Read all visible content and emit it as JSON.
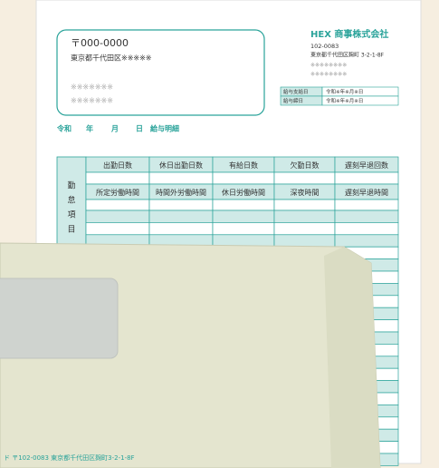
{
  "recipient": {
    "postal": "〒000-0000",
    "address": "東京都千代田区※※※※※",
    "lines": [
      "※※※※※※※",
      "※※※※※※※"
    ]
  },
  "company": {
    "name": "HEX 商事株式会社",
    "postal": "102-0083",
    "address": "東京都千代田区麹町 3-2-1-8F",
    "lines": [
      "※※※※※※※※",
      "※※※※※※※※"
    ]
  },
  "dates": {
    "rows": [
      [
        "給与支給日",
        "令和※年※月※日"
      ],
      [
        "給与締日",
        "令和※年※月※日"
      ]
    ]
  },
  "title": {
    "era": "令和",
    "year": "年",
    "month": "月",
    "day": "日",
    "name": "給与明細"
  },
  "table": {
    "side_label": [
      "勤",
      "怠",
      "項",
      "目"
    ],
    "header_1": [
      "出勤日数",
      "休日出勤日数",
      "有給日数",
      "欠勤日数",
      "遅刻早退回数"
    ],
    "header_2": [
      "所定労働時間",
      "時間外労働時間",
      "休日労働時間",
      "深夜時間",
      "遅刻早退時間"
    ]
  },
  "envelope": {
    "address": "ド 〒102-0083 東京都千代田区麹町3-2-1-8F"
  }
}
